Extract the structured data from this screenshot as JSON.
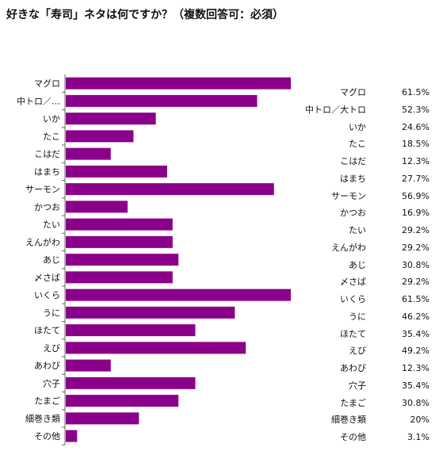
{
  "title": "好きな「寿司」ネタは何ですか？（複数回答可：必須）",
  "colors": {
    "bar": "#8b008b",
    "axis": "#666666"
  },
  "chart_data": {
    "type": "bar",
    "orientation": "horizontal",
    "title": "好きな「寿司」ネタは何ですか？（複数回答可：必須）",
    "xlabel": "",
    "ylabel": "",
    "xlim": [
      0,
      61.5
    ],
    "unit": "%",
    "categories": [
      "マグロ",
      "中トロ／…",
      "いか",
      "たこ",
      "こはだ",
      "はまち",
      "サーモン",
      "かつお",
      "たい",
      "えんがわ",
      "あじ",
      "〆さば",
      "いくら",
      "うに",
      "ほたて",
      "えび",
      "あわび",
      "穴子",
      "たまご",
      "細巻き類",
      "その他"
    ],
    "values": [
      61.5,
      52.3,
      24.6,
      18.5,
      12.3,
      27.7,
      56.9,
      16.9,
      29.2,
      29.2,
      30.8,
      29.2,
      61.5,
      46.2,
      35.4,
      49.2,
      12.3,
      35.4,
      30.8,
      20,
      3.1
    ],
    "table_names": [
      "マグロ",
      "中トロ／大トロ",
      "いか",
      "たこ",
      "こはだ",
      "はまち",
      "サーモン",
      "かつお",
      "たい",
      "えんがわ",
      "あじ",
      "〆さば",
      "いくら",
      "うに",
      "ほたて",
      "えび",
      "あわび",
      "穴子",
      "たまご",
      "細巻き類",
      "その他"
    ],
    "table_values": [
      "61.5%",
      "52.3%",
      "24.6%",
      "18.5%",
      "12.3%",
      "27.7%",
      "56.9%",
      "16.9%",
      "29.2%",
      "29.2%",
      "30.8%",
      "29.2%",
      "61.5%",
      "46.2%",
      "35.4%",
      "49.2%",
      "12.3%",
      "35.4%",
      "30.8%",
      "20%",
      "3.1%"
    ]
  }
}
